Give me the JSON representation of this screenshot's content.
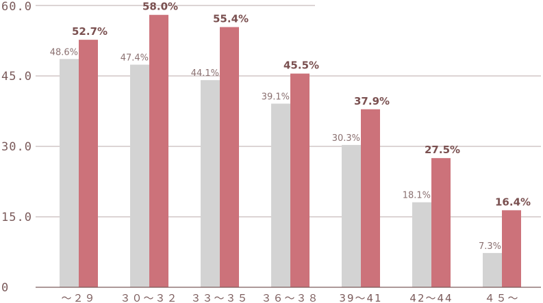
{
  "chart_data": {
    "type": "bar",
    "categories": [
      "～２９",
      "３０～３２",
      "３３～３５",
      "３６～３８",
      "39～41",
      "42～44",
      "４５～"
    ],
    "series": [
      {
        "values": [
          48.6,
          47.4,
          44.1,
          39.1,
          30.3,
          18.1,
          7.3
        ],
        "labels": [
          "48.6%",
          "47.4%",
          "44.1%",
          "39.1%",
          "30.3%",
          "18.1%",
          "7.3%"
        ],
        "color": "#d3d3d3"
      },
      {
        "values": [
          52.7,
          58.0,
          55.4,
          45.5,
          37.9,
          27.5,
          16.4
        ],
        "labels": [
          "52.7%",
          "58.0%",
          "55.4%",
          "45.5%",
          "37.9%",
          "27.5%",
          "16.4%"
        ],
        "color": "#cc727a"
      }
    ],
    "ylim": [
      0,
      60
    ],
    "yticks": [
      0,
      15,
      30,
      45,
      60
    ],
    "ytick_labels": [
      "0",
      "15.0",
      "30.0",
      "45.0",
      "60.0"
    ],
    "grid": true,
    "gridline_color": "#b8a9a9",
    "axis_color": "#7a5a5a"
  }
}
